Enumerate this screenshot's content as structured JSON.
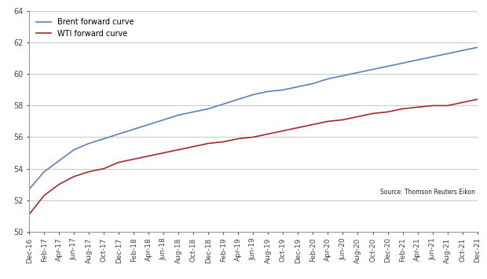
{
  "chart_data": {
    "type": "line",
    "categories": [
      "Dec-16",
      "Feb-17",
      "Apr-17",
      "Jun-17",
      "Aug-17",
      "Oct-17",
      "Dec-17",
      "Feb-18",
      "Apr-18",
      "Jun-18",
      "Aug-18",
      "Oct-18",
      "Dec-18",
      "Feb-19",
      "Apr-19",
      "Jun-19",
      "Aug-19",
      "Oct-19",
      "Dec-19",
      "Feb-20",
      "Apr-20",
      "Jun-20",
      "Aug-20",
      "Oct-20",
      "Dec-20",
      "Feb-21",
      "Apr-21",
      "Jun-21",
      "Aug-21",
      "Oct-21",
      "Dec-21"
    ],
    "series": [
      {
        "name": "Brent forward curve",
        "color": "#5b80b8",
        "values": [
          52.7,
          53.8,
          54.5,
          55.2,
          55.6,
          55.9,
          56.2,
          56.5,
          56.8,
          57.1,
          57.4,
          57.6,
          57.8,
          58.1,
          58.4,
          58.7,
          58.9,
          59.0,
          59.2,
          59.4,
          59.7,
          59.9,
          60.1,
          60.3,
          60.5,
          60.7,
          60.9,
          61.1,
          61.3,
          61.5,
          61.7
        ]
      },
      {
        "name": "WTI forward curve",
        "color": "#a3282f",
        "values": [
          51.1,
          52.3,
          53.0,
          53.5,
          53.8,
          54.0,
          54.4,
          54.6,
          54.8,
          55.0,
          55.2,
          55.4,
          55.6,
          55.7,
          55.9,
          56.0,
          56.2,
          56.4,
          56.6,
          56.8,
          57.0,
          57.1,
          57.3,
          57.5,
          57.6,
          57.8,
          57.9,
          58.0,
          58.0,
          58.2,
          58.4
        ]
      }
    ],
    "ylim": [
      50,
      64
    ],
    "yticks": [
      50,
      52,
      54,
      56,
      58,
      60,
      62,
      64
    ],
    "grid": true,
    "legend": "upper left",
    "annotations": [
      "Source: Thomson Reuters Eikon"
    ]
  }
}
